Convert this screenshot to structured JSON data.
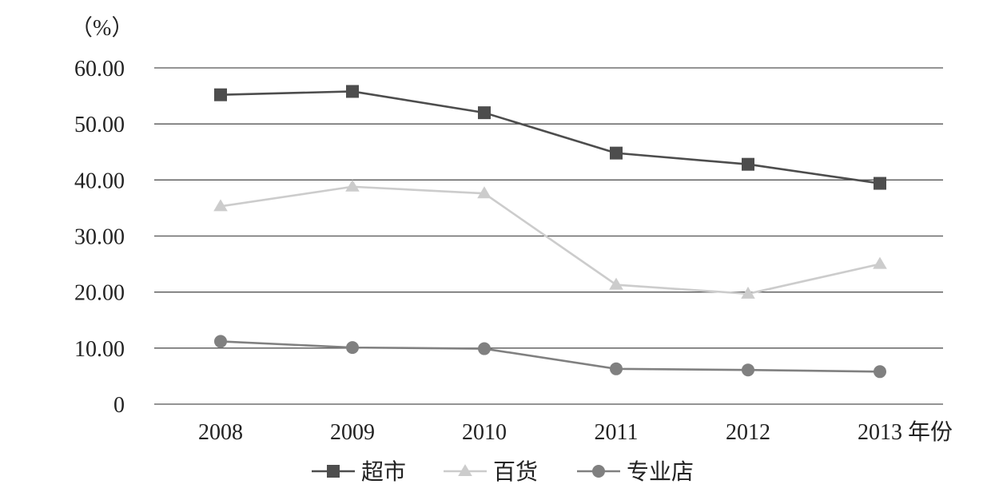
{
  "chart_data": {
    "type": "line",
    "y_unit_label": "（%）",
    "x_unit_label": "年份",
    "categories": [
      "2008",
      "2009",
      "2010",
      "2011",
      "2012",
      "2013"
    ],
    "ylim": [
      0,
      60
    ],
    "y_ticks": [
      "0",
      "10.00",
      "20.00",
      "30.00",
      "40.00",
      "50.00",
      "60.00"
    ],
    "grid": true,
    "legend_position": "bottom",
    "series": [
      {
        "name": "超市",
        "values": [
          55.2,
          55.8,
          52.0,
          44.8,
          42.8,
          39.4
        ],
        "color": "#4d4d4d",
        "marker": "square"
      },
      {
        "name": "百货",
        "values": [
          35.3,
          38.8,
          37.6,
          21.3,
          19.7,
          25.0
        ],
        "color": "#cccccc",
        "marker": "triangle"
      },
      {
        "name": "专业店",
        "values": [
          11.2,
          10.1,
          9.9,
          6.3,
          6.1,
          5.8
        ],
        "color": "#808080",
        "marker": "circle"
      }
    ]
  }
}
